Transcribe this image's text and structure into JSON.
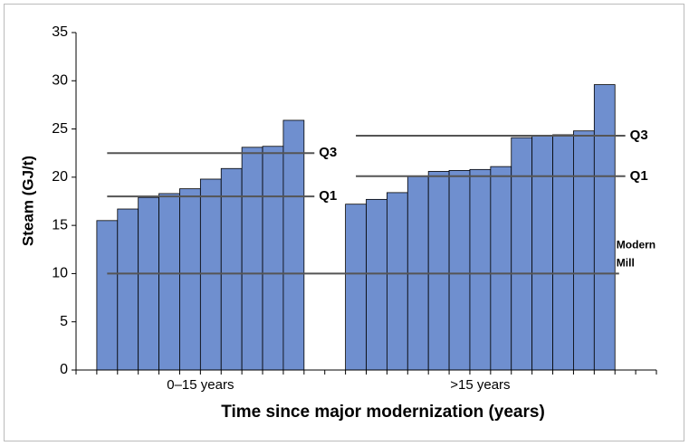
{
  "chart_data": {
    "type": "grouped-bar",
    "ylabel": "Steam (GJ/t)",
    "xlabel": "Time since major modernization (years)",
    "color": "#6f8fcf",
    "ylim": [
      0,
      35
    ],
    "yticks": [
      0,
      5,
      10,
      15,
      20,
      25,
      30,
      35
    ],
    "groups": [
      {
        "label": "0–15 years",
        "values": [
          15.5,
          16.7,
          17.9,
          18.3,
          18.8,
          19.8,
          20.9,
          23.1,
          23.2,
          25.9
        ],
        "q1": 18.0,
        "q3": 22.5
      },
      {
        "label": ">15 years",
        "values": [
          17.2,
          17.7,
          18.4,
          20.1,
          20.6,
          20.7,
          20.8,
          21.1,
          24.1,
          24.3,
          24.4,
          24.8,
          29.6
        ],
        "q1": 20.1,
        "q3": 24.3
      }
    ],
    "q1_label": "Q1",
    "q3_label": "Q3",
    "reference": {
      "value": 10,
      "label": [
        "Modern",
        "Mill"
      ]
    }
  }
}
